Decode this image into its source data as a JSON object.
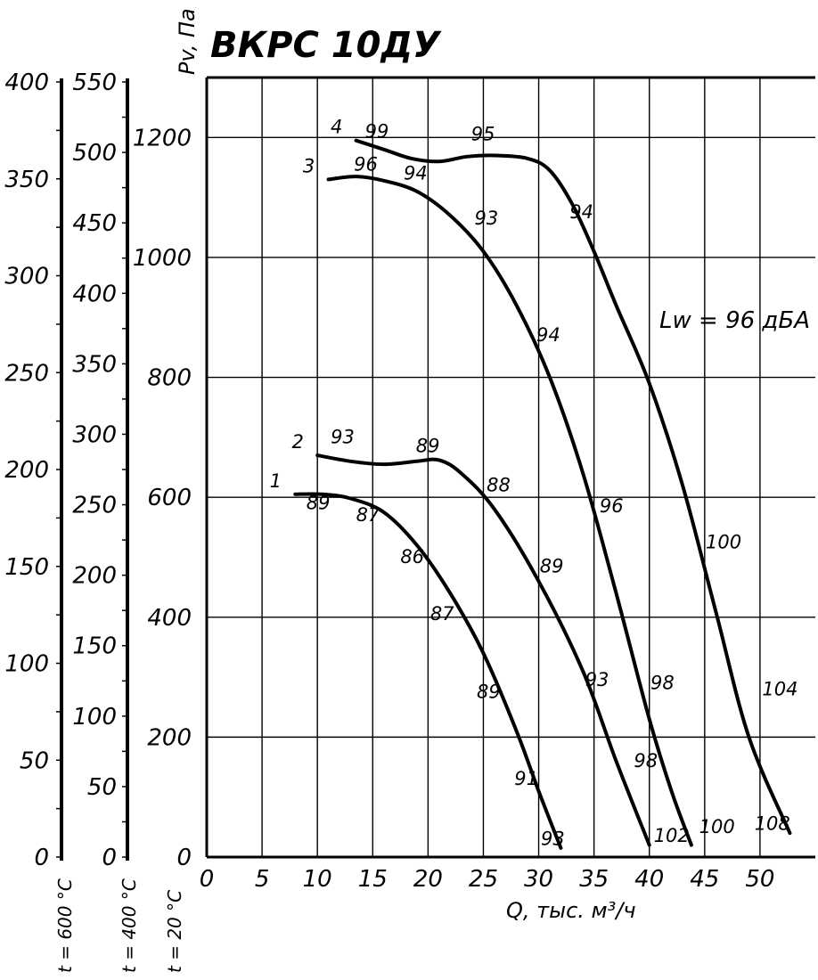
{
  "chart_data": {
    "type": "line",
    "title": "ВКРС 10ДУ",
    "xlabel": "Q, тыс. м³/ч",
    "ylabel": "Pv, Па",
    "annotation": "Lw = 96 дБА",
    "xlim": [
      0,
      55
    ],
    "ylim": [
      0,
      1300
    ],
    "x_ticks": [
      0,
      5,
      10,
      15,
      20,
      25,
      30,
      35,
      40,
      45,
      50
    ],
    "y_ticks": [
      0,
      200,
      400,
      600,
      800,
      1000,
      1200
    ],
    "grid": true,
    "series": [
      {
        "name": "1",
        "points": [
          [
            8,
            605
          ],
          [
            10.5,
            605
          ],
          [
            13,
            598
          ],
          [
            16,
            575
          ],
          [
            19,
            520
          ],
          [
            22,
            440
          ],
          [
            25,
            340
          ],
          [
            28,
            210
          ],
          [
            30,
            110
          ],
          [
            32,
            15
          ]
        ],
        "labels": [
          {
            "text": "89",
            "x": 9,
            "y": 580
          },
          {
            "text": "87",
            "x": 13.5,
            "y": 560
          },
          {
            "text": "86",
            "x": 17.5,
            "y": 490
          },
          {
            "text": "87",
            "x": 20.2,
            "y": 395
          },
          {
            "text": "89",
            "x": 24.4,
            "y": 265
          },
          {
            "text": "91",
            "x": 27.8,
            "y": 120
          },
          {
            "text": "93",
            "x": 30.2,
            "y": 20
          }
        ]
      },
      {
        "name": "2",
        "points": [
          [
            10,
            670
          ],
          [
            13,
            660
          ],
          [
            16,
            655
          ],
          [
            19,
            660
          ],
          [
            21,
            662
          ],
          [
            23,
            640
          ],
          [
            26,
            580
          ],
          [
            30,
            460
          ],
          [
            34,
            310
          ],
          [
            37,
            160
          ],
          [
            40,
            20
          ]
        ],
        "labels": [
          {
            "text": "93",
            "x": 11.2,
            "y": 690
          },
          {
            "text": "89",
            "x": 18.9,
            "y": 675
          },
          {
            "text": "88",
            "x": 25.3,
            "y": 610
          },
          {
            "text": "89",
            "x": 30.1,
            "y": 475
          },
          {
            "text": "93",
            "x": 34.2,
            "y": 285
          },
          {
            "text": "98",
            "x": 38.6,
            "y": 150
          },
          {
            "text": "102",
            "x": 40.4,
            "y": 25
          }
        ]
      },
      {
        "name": "3",
        "points": [
          [
            11,
            1130
          ],
          [
            13.5,
            1135
          ],
          [
            16,
            1128
          ],
          [
            19,
            1110
          ],
          [
            22,
            1070
          ],
          [
            25,
            1010
          ],
          [
            28,
            920
          ],
          [
            31,
            800
          ],
          [
            34,
            640
          ],
          [
            37,
            440
          ],
          [
            40,
            230
          ],
          [
            42,
            110
          ],
          [
            43.8,
            20
          ]
        ],
        "labels": [
          {
            "text": "96",
            "x": 13.3,
            "y": 1145
          },
          {
            "text": "94",
            "x": 17.8,
            "y": 1130
          },
          {
            "text": "93",
            "x": 24.2,
            "y": 1055
          },
          {
            "text": "94",
            "x": 29.8,
            "y": 860
          },
          {
            "text": "96",
            "x": 35.5,
            "y": 575
          },
          {
            "text": "98",
            "x": 40.1,
            "y": 280
          },
          {
            "text": "100",
            "x": 44.5,
            "y": 40
          }
        ]
      },
      {
        "name": "4",
        "points": [
          [
            13.5,
            1195
          ],
          [
            16,
            1180
          ],
          [
            18.5,
            1165
          ],
          [
            21,
            1160
          ],
          [
            23.5,
            1168
          ],
          [
            26,
            1170
          ],
          [
            29,
            1165
          ],
          [
            31,
            1145
          ],
          [
            33,
            1090
          ],
          [
            35,
            1010
          ],
          [
            37,
            920
          ],
          [
            40,
            790
          ],
          [
            43,
            620
          ],
          [
            46,
            410
          ],
          [
            49,
            200
          ],
          [
            52.7,
            40
          ]
        ],
        "labels": [
          {
            "text": "99",
            "x": 14.3,
            "y": 1200
          },
          {
            "text": "95",
            "x": 23.9,
            "y": 1195
          },
          {
            "text": "94",
            "x": 32.8,
            "y": 1065
          },
          {
            "text": "100",
            "x": 45.1,
            "y": 515
          },
          {
            "text": "104",
            "x": 50.2,
            "y": 270
          },
          {
            "text": "108",
            "x": 49.5,
            "y": 45
          }
        ]
      }
    ],
    "extra_axes": [
      {
        "label": "t = 20 °C",
        "ticks": [
          0,
          200,
          400,
          600,
          800,
          1000,
          1200
        ]
      },
      {
        "label": "t = 400 °C",
        "ticks": [
          0,
          50,
          100,
          150,
          200,
          250,
          300,
          350,
          400,
          450,
          500,
          550
        ]
      },
      {
        "label": "t = 600 °C",
        "ticks": [
          0,
          50,
          100,
          150,
          200,
          250,
          300,
          350,
          400
        ]
      }
    ]
  }
}
